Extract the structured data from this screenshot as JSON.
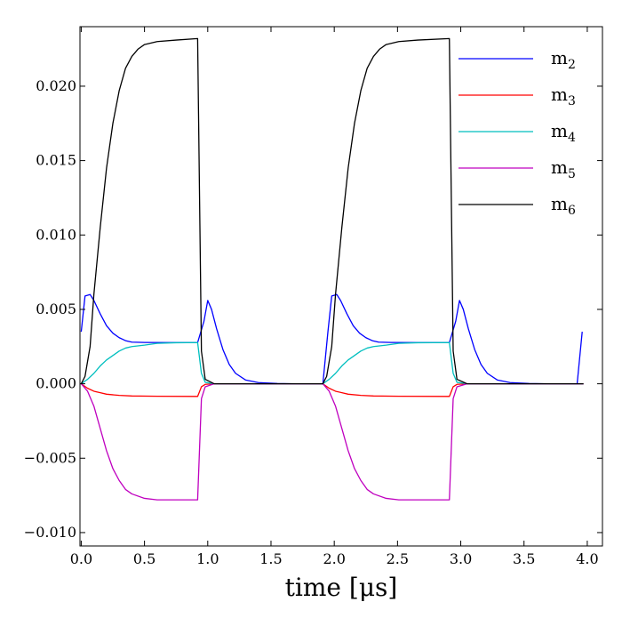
{
  "chart_data": {
    "type": "line",
    "title": "",
    "xlabel": "time [μs]",
    "ylabel": "",
    "xlim": [
      -0.01,
      4.12
    ],
    "ylim": [
      -0.0109,
      0.024
    ],
    "xticks": [
      0.0,
      0.5,
      1.0,
      1.5,
      2.0,
      2.5,
      3.0,
      3.5,
      4.0
    ],
    "xtick_labels": [
      "0.0",
      "0.5",
      "1.0",
      "1.5",
      "2.0",
      "2.5",
      "3.0",
      "3.5",
      "4.0"
    ],
    "yticks": [
      -0.01,
      -0.005,
      0.0,
      0.005,
      0.01,
      0.015,
      0.02
    ],
    "ytick_labels": [
      "−0.010",
      "−0.005",
      "0.000",
      "0.005",
      "0.010",
      "0.015",
      "0.020"
    ],
    "grid": false,
    "legend_position": "top-right",
    "series": [
      {
        "name": "m2",
        "label_base": "m",
        "label_sub": "2",
        "color": "#0000ff",
        "points": [
          [
            0.0,
            0.0035
          ],
          [
            0.03,
            0.0059
          ],
          [
            0.07,
            0.006
          ],
          [
            0.1,
            0.0056
          ],
          [
            0.15,
            0.0047
          ],
          [
            0.2,
            0.0039
          ],
          [
            0.25,
            0.0034
          ],
          [
            0.3,
            0.0031
          ],
          [
            0.35,
            0.0029
          ],
          [
            0.4,
            0.0028
          ],
          [
            0.5,
            0.00278
          ],
          [
            0.7,
            0.00277
          ],
          [
            0.92,
            0.00277
          ],
          [
            0.97,
            0.0042
          ],
          [
            1.0,
            0.0056
          ],
          [
            1.03,
            0.005
          ],
          [
            1.07,
            0.0037
          ],
          [
            1.12,
            0.0023
          ],
          [
            1.17,
            0.0013
          ],
          [
            1.22,
            0.0007
          ],
          [
            1.3,
            0.00025
          ],
          [
            1.4,
            8e-05
          ],
          [
            1.55,
            2e-05
          ],
          [
            1.7,
            0.0
          ],
          [
            1.91,
            0.0
          ],
          [
            1.95,
            0.0035
          ],
          [
            1.98,
            0.0059
          ],
          [
            2.02,
            0.006
          ],
          [
            2.05,
            0.0056
          ],
          [
            2.1,
            0.0047
          ],
          [
            2.15,
            0.0039
          ],
          [
            2.2,
            0.0034
          ],
          [
            2.25,
            0.0031
          ],
          [
            2.3,
            0.0029
          ],
          [
            2.35,
            0.0028
          ],
          [
            2.45,
            0.00278
          ],
          [
            2.65,
            0.00277
          ],
          [
            2.91,
            0.00277
          ],
          [
            2.96,
            0.0042
          ],
          [
            2.99,
            0.0056
          ],
          [
            3.02,
            0.005
          ],
          [
            3.06,
            0.0037
          ],
          [
            3.11,
            0.0023
          ],
          [
            3.16,
            0.0013
          ],
          [
            3.21,
            0.0007
          ],
          [
            3.29,
            0.00025
          ],
          [
            3.39,
            8e-05
          ],
          [
            3.54,
            2e-05
          ],
          [
            3.7,
            0.0
          ],
          [
            3.92,
            0.0
          ],
          [
            3.96,
            0.0035
          ]
        ]
      },
      {
        "name": "m3",
        "label_base": "m",
        "label_sub": "3",
        "color": "#ff0000",
        "points": [
          [
            0.0,
            0.0
          ],
          [
            0.05,
            -0.0003
          ],
          [
            0.1,
            -0.0005
          ],
          [
            0.15,
            -0.0006
          ],
          [
            0.2,
            -0.0007
          ],
          [
            0.3,
            -0.00078
          ],
          [
            0.4,
            -0.00082
          ],
          [
            0.6,
            -0.00084
          ],
          [
            0.92,
            -0.00085
          ],
          [
            0.95,
            -0.0002
          ],
          [
            0.98,
            -4e-05
          ],
          [
            1.05,
            0.0
          ],
          [
            1.91,
            0.0
          ],
          [
            1.96,
            -0.0003
          ],
          [
            2.01,
            -0.0005
          ],
          [
            2.06,
            -0.0006
          ],
          [
            2.11,
            -0.0007
          ],
          [
            2.21,
            -0.00078
          ],
          [
            2.31,
            -0.00082
          ],
          [
            2.51,
            -0.00084
          ],
          [
            2.91,
            -0.00085
          ],
          [
            2.94,
            -0.0002
          ],
          [
            2.97,
            -4e-05
          ],
          [
            3.05,
            0.0
          ],
          [
            3.97,
            0.0
          ]
        ]
      },
      {
        "name": "m4",
        "label_base": "m",
        "label_sub": "4",
        "color": "#00bfbf",
        "points": [
          [
            0.0,
            0.0
          ],
          [
            0.05,
            0.0003
          ],
          [
            0.1,
            0.0007
          ],
          [
            0.15,
            0.0012
          ],
          [
            0.2,
            0.0016
          ],
          [
            0.25,
            0.0019
          ],
          [
            0.3,
            0.0022
          ],
          [
            0.35,
            0.0024
          ],
          [
            0.4,
            0.0025
          ],
          [
            0.5,
            0.0026
          ],
          [
            0.6,
            0.00272
          ],
          [
            0.75,
            0.00276
          ],
          [
            0.92,
            0.00277
          ],
          [
            0.95,
            0.0007
          ],
          [
            0.98,
            0.0001
          ],
          [
            1.05,
            0.0
          ],
          [
            1.91,
            0.0
          ],
          [
            1.96,
            0.0003
          ],
          [
            2.01,
            0.0007
          ],
          [
            2.06,
            0.0012
          ],
          [
            2.11,
            0.0016
          ],
          [
            2.16,
            0.0019
          ],
          [
            2.21,
            0.0022
          ],
          [
            2.26,
            0.0024
          ],
          [
            2.31,
            0.0025
          ],
          [
            2.41,
            0.0026
          ],
          [
            2.51,
            0.00272
          ],
          [
            2.66,
            0.00276
          ],
          [
            2.91,
            0.00277
          ],
          [
            2.94,
            0.0007
          ],
          [
            2.97,
            0.0001
          ],
          [
            3.05,
            0.0
          ],
          [
            3.97,
            0.0
          ]
        ]
      },
      {
        "name": "m5",
        "label_base": "m",
        "label_sub": "5",
        "color": "#bf00bf",
        "points": [
          [
            0.0,
            0.0
          ],
          [
            0.05,
            -0.0005
          ],
          [
            0.1,
            -0.0015
          ],
          [
            0.15,
            -0.003
          ],
          [
            0.2,
            -0.0045
          ],
          [
            0.25,
            -0.0057
          ],
          [
            0.3,
            -0.0065
          ],
          [
            0.35,
            -0.0071
          ],
          [
            0.4,
            -0.0074
          ],
          [
            0.5,
            -0.0077
          ],
          [
            0.6,
            -0.0078
          ],
          [
            0.75,
            -0.0078
          ],
          [
            0.92,
            -0.0078
          ],
          [
            0.95,
            -0.001
          ],
          [
            0.98,
            -0.0002
          ],
          [
            1.05,
            0.0
          ],
          [
            1.91,
            0.0
          ],
          [
            1.96,
            -0.0005
          ],
          [
            2.01,
            -0.0015
          ],
          [
            2.06,
            -0.003
          ],
          [
            2.11,
            -0.0045
          ],
          [
            2.16,
            -0.0057
          ],
          [
            2.21,
            -0.0065
          ],
          [
            2.26,
            -0.0071
          ],
          [
            2.31,
            -0.0074
          ],
          [
            2.41,
            -0.0077
          ],
          [
            2.51,
            -0.0078
          ],
          [
            2.66,
            -0.0078
          ],
          [
            2.91,
            -0.0078
          ],
          [
            2.94,
            -0.001
          ],
          [
            2.97,
            -0.0002
          ],
          [
            3.05,
            0.0
          ],
          [
            3.97,
            0.0
          ]
        ]
      },
      {
        "name": "m6",
        "label_base": "m",
        "label_sub": "6",
        "color": "#000000",
        "points": [
          [
            0.0,
            0.0
          ],
          [
            0.03,
            0.0005
          ],
          [
            0.07,
            0.0025
          ],
          [
            0.1,
            0.006
          ],
          [
            0.15,
            0.0105
          ],
          [
            0.2,
            0.0145
          ],
          [
            0.25,
            0.0175
          ],
          [
            0.3,
            0.0197
          ],
          [
            0.35,
            0.0212
          ],
          [
            0.4,
            0.022
          ],
          [
            0.45,
            0.0225
          ],
          [
            0.5,
            0.0228
          ],
          [
            0.6,
            0.023
          ],
          [
            0.75,
            0.0231
          ],
          [
            0.92,
            0.0232
          ],
          [
            0.95,
            0.0022
          ],
          [
            0.98,
            0.0003
          ],
          [
            1.05,
            0.0
          ],
          [
            1.91,
            0.0
          ],
          [
            1.94,
            0.0005
          ],
          [
            1.98,
            0.0025
          ],
          [
            2.01,
            0.006
          ],
          [
            2.06,
            0.0105
          ],
          [
            2.11,
            0.0145
          ],
          [
            2.16,
            0.0175
          ],
          [
            2.21,
            0.0197
          ],
          [
            2.26,
            0.0212
          ],
          [
            2.31,
            0.022
          ],
          [
            2.36,
            0.0225
          ],
          [
            2.41,
            0.0228
          ],
          [
            2.51,
            0.023
          ],
          [
            2.66,
            0.0231
          ],
          [
            2.91,
            0.0232
          ],
          [
            2.94,
            0.0022
          ],
          [
            2.97,
            0.0003
          ],
          [
            3.05,
            0.0
          ],
          [
            3.97,
            0.0
          ]
        ]
      }
    ]
  }
}
